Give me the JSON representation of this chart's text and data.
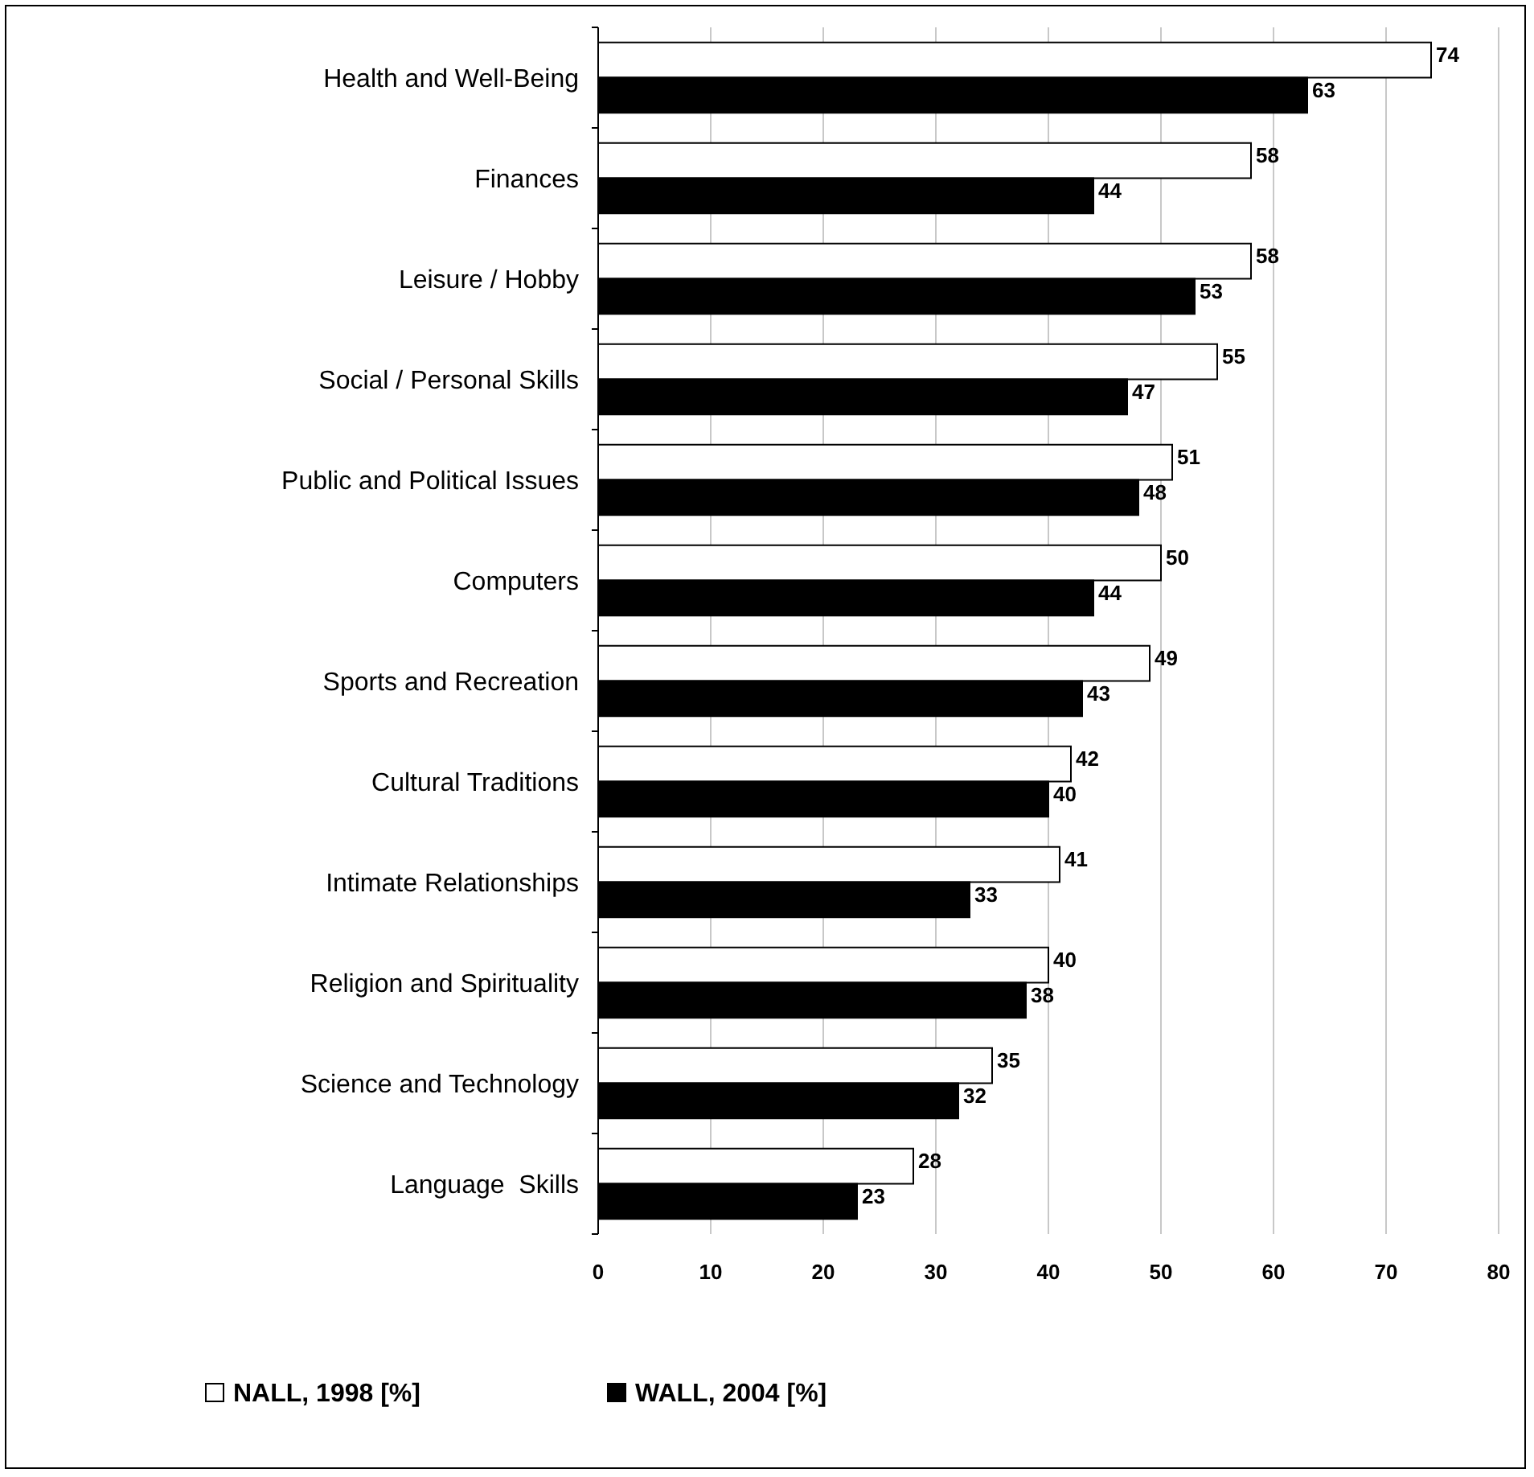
{
  "chart_data": {
    "type": "bar",
    "orientation": "horizontal",
    "categories": [
      "Health and Well-Being",
      "Finances",
      "Leisure / Hobby",
      "Social / Personal Skills",
      "Public and Political Issues",
      "Computers",
      "Sports and Recreation",
      "Cultural Traditions",
      "Intimate Relationships",
      "Religion and Spirituality",
      "Science and Technology",
      "Language  Skills"
    ],
    "series": [
      {
        "name": "NALL, 1998 [%]",
        "color": "#ffffff",
        "values": [
          74,
          58,
          58,
          55,
          51,
          50,
          49,
          42,
          41,
          40,
          35,
          28
        ]
      },
      {
        "name": "WALL, 2004 [%]",
        "color": "#000000",
        "values": [
          63,
          44,
          53,
          47,
          48,
          44,
          43,
          40,
          33,
          38,
          32,
          23
        ]
      }
    ],
    "xlim": [
      0,
      80
    ],
    "xticks": [
      0,
      10,
      20,
      30,
      40,
      50,
      60,
      70,
      80
    ],
    "grid": "x",
    "legend": "bottom",
    "data_labels": true
  }
}
